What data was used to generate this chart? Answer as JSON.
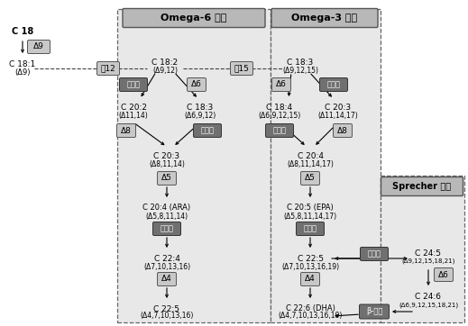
{
  "fig_width": 5.19,
  "fig_height": 3.62,
  "dpi": 100,
  "bg": "white",
  "panel_bg": "#e0e0e0",
  "panel_edge": "#666666",
  "title_bg": "#b8b8b8",
  "box_light_bg": "#c8c8c8",
  "box_dark_bg": "#707070",
  "box_light_edge": "#555555",
  "box_dark_edge": "#333333",
  "title_omega6": "Omega-6 途径",
  "title_omega3": "Omega-3 途径",
  "title_sprecher": "Sprecher 途径",
  "label_C18": "C 18",
  "label_C181": "C 18:1",
  "label_C181sub": "(Δ9)",
  "label_A9": "Δ9",
  "label_A12": "㥉12",
  "label_A15": "㥉15",
  "label_C182": "C 18:2",
  "label_C182sub": "(Δ9,12)",
  "label_C183": "C 18:3",
  "label_C183sub": "(Δ9,12,15)",
  "label_elg": "延长酶",
  "label_A6": "Δ6",
  "label_C202": "C 20:2",
  "label_C202sub": "(Δ11,14)",
  "label_C183b": "C 18:3",
  "label_C183bsub": "(Δ6,9,12)",
  "label_C184": "C 18:4",
  "label_C184sub": "(Δ6,9,12,15)",
  "label_C203r": "C 20:3",
  "label_C203rsub": "(Δ11,14,17)",
  "label_A8": "Δ8",
  "label_C203": "C 20:3",
  "label_C203sub": "(Δ8,11,14)",
  "label_C204": "C 20:4",
  "label_C204sub": "(Δ8,11,14,17)",
  "label_A5": "Δ5",
  "label_C204ARA": "C 20:4 (ARA)",
  "label_C204ARAsub": "(Δ5,8,11,14)",
  "label_C205EPA": "C 20:5 (EPA)",
  "label_C205EPAsub": "(Δ5,8,11,14,17)",
  "label_C224": "C 22:4",
  "label_C224sub": "(Δ7,10,13,16)",
  "label_C225": "C 22:5",
  "label_C225sub": "(Δ7,10,13,16,19)",
  "label_A4": "Δ4",
  "label_C225b": "C 22:5",
  "label_C225bsub": "(Δ4,7,10,13,16)",
  "label_C226DHA": "C 22:6 (DHA)",
  "label_C226DHAsub": "(Δ4,7,10,13,16,19)",
  "label_C245": "C 24:5",
  "label_C245sub": "(Δ9,12,15,18,21)",
  "label_C246": "C 24:6",
  "label_C246sub": "(Δ6,9,12,15,18,21)",
  "label_betaox": "β-氧化"
}
